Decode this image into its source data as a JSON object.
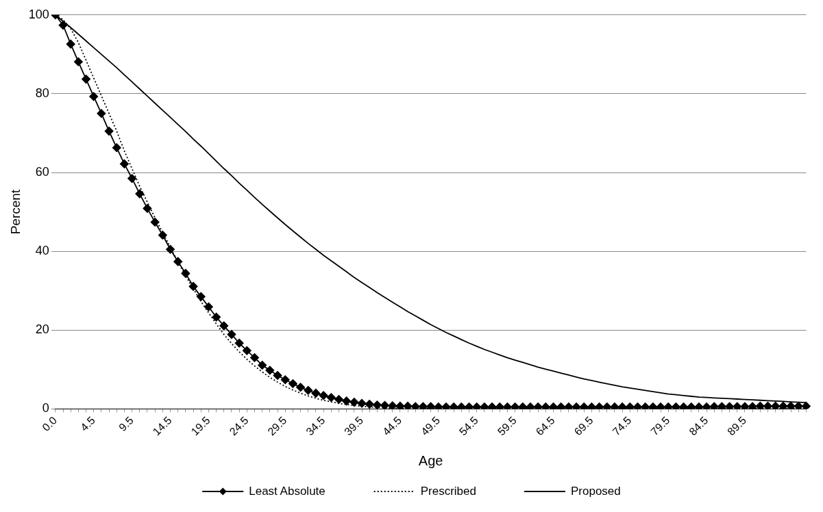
{
  "chart_data": {
    "type": "line",
    "xlabel": "Age",
    "ylabel": "Percent",
    "categories": [
      "0.0",
      null,
      null,
      null,
      null,
      "4.5",
      null,
      null,
      null,
      null,
      "9.5",
      null,
      null,
      null,
      null,
      "14.5",
      null,
      null,
      null,
      null,
      "19.5",
      null,
      null,
      null,
      null,
      "24.5",
      null,
      null,
      null,
      null,
      "29.5",
      null,
      null,
      null,
      null,
      "34.5",
      null,
      null,
      null,
      null,
      "39.5",
      null,
      null,
      null,
      null,
      "44.5",
      null,
      null,
      null,
      null,
      "49.5",
      null,
      null,
      null,
      null,
      "54.5",
      null,
      null,
      null,
      null,
      "59.5",
      null,
      null,
      null,
      null,
      "64.5",
      null,
      null,
      null,
      null,
      "69.5",
      null,
      null,
      null,
      null,
      "74.5",
      null,
      null,
      null,
      null,
      "79.5",
      null,
      null,
      null,
      null,
      "84.5",
      null,
      null,
      null,
      null,
      "89.5",
      null,
      null,
      null,
      null,
      null,
      null,
      null,
      null
    ],
    "series": [
      {
        "name": "Least Absolute",
        "color": "#000000",
        "marker": "diamond",
        "line_style": "solid",
        "values": [
          100,
          97.4,
          92.6,
          88.1,
          83.7,
          79.3,
          75,
          70.5,
          66.3,
          62.2,
          58.5,
          54.6,
          50.9,
          47.4,
          44.1,
          40.5,
          37.4,
          34.4,
          31.1,
          28.5,
          25.9,
          23.3,
          21.1,
          18.9,
          16.7,
          14.8,
          13,
          11.1,
          9.8,
          8.5,
          7.4,
          6.4,
          5.5,
          4.7,
          4,
          3.4,
          2.9,
          2.4,
          2,
          1.7,
          1.4,
          1.2,
          1,
          0.9,
          0.8,
          0.7,
          0.7,
          0.6,
          0.6,
          0.6,
          0.5,
          0.5,
          0.5,
          0.5,
          0.5,
          0.5,
          0.5,
          0.5,
          0.5,
          0.5,
          0.5,
          0.5,
          0.5,
          0.5,
          0.5,
          0.5,
          0.5,
          0.5,
          0.5,
          0.5,
          0.5,
          0.5,
          0.5,
          0.5,
          0.5,
          0.5,
          0.5,
          0.5,
          0.5,
          0.5,
          0.5,
          0.5,
          0.5,
          0.5,
          0.5,
          0.5,
          0.6,
          0.6,
          0.6,
          0.6,
          0.6,
          0.6,
          0.7,
          0.7,
          0.7,
          0.7,
          0.7,
          0.7,
          0.7
        ]
      },
      {
        "name": "Prescribed",
        "color": "#000000",
        "marker": "none",
        "line_style": "dotted",
        "values": [
          100,
          98.8,
          96.5,
          93,
          88.5,
          84,
          79.5,
          75,
          70.5,
          65.5,
          61,
          56.5,
          52.5,
          48.5,
          44.8,
          41,
          37.3,
          33.8,
          30.5,
          27.3,
          24.4,
          21.6,
          18.9,
          16.6,
          14.5,
          12.6,
          10.9,
          9.4,
          8,
          6.8,
          5.7,
          4.8,
          4,
          3.3,
          2.7,
          2.2,
          1.8,
          1.4,
          1.1,
          0.9,
          0.7,
          0.5,
          0.4,
          0.3,
          0.2,
          0.1,
          0.1,
          0.1,
          0.1,
          0.1,
          0.1,
          0.1,
          0.1,
          0.1,
          0.1,
          0.1,
          0.1,
          0.1,
          0.1,
          0.1,
          0.1,
          0.1,
          0.1,
          0.1,
          0.1,
          0.1,
          0.1,
          0.1,
          0.1,
          0.1,
          0.1,
          0.1,
          0.1,
          0.1,
          0.1,
          0.1,
          0.1,
          0.1,
          0.1,
          0.1,
          0.1,
          0.1,
          0.1,
          0.1,
          0.1,
          0.1,
          0.1,
          0.1,
          0.1,
          0.1,
          0.1,
          0.1,
          0.1,
          0.1,
          0.1,
          0.1,
          0.1,
          0.1,
          0.1
        ]
      },
      {
        "name": "Proposed",
        "color": "#000000",
        "marker": "none",
        "line_style": "solid",
        "values": [
          100,
          98.4,
          96.8,
          95.1,
          93.4,
          91.7,
          90,
          88.3,
          86.6,
          84.8,
          83,
          81.2,
          79.4,
          77.6,
          75.8,
          74,
          72.2,
          70.4,
          68.5,
          66.7,
          64.8,
          62.9,
          61,
          59.2,
          57.3,
          55.5,
          53.7,
          51.9,
          50.2,
          48.5,
          46.8,
          45.2,
          43.6,
          42,
          40.5,
          39,
          37.6,
          36.2,
          34.8,
          33.4,
          32.1,
          30.8,
          29.5,
          28.3,
          27.1,
          25.9,
          24.7,
          23.6,
          22.5,
          21.4,
          20.4,
          19.4,
          18.5,
          17.6,
          16.7,
          15.9,
          15.1,
          14.4,
          13.7,
          13,
          12.4,
          11.8,
          11.2,
          10.6,
          10.1,
          9.6,
          9.1,
          8.6,
          8.1,
          7.6,
          7.2,
          6.8,
          6.4,
          6,
          5.6,
          5.3,
          5,
          4.7,
          4.4,
          4.1,
          3.8,
          3.6,
          3.4,
          3.2,
          3,
          2.9,
          2.8,
          2.7,
          2.6,
          2.5,
          2.4,
          2.3,
          2.2,
          2.1,
          2,
          1.9,
          1.8,
          1.7,
          1.6
        ]
      }
    ],
    "ylim": [
      0,
      100
    ],
    "yticks": [
      0,
      20,
      40,
      60,
      80,
      100
    ],
    "grid": "y",
    "legend": "bottom"
  }
}
